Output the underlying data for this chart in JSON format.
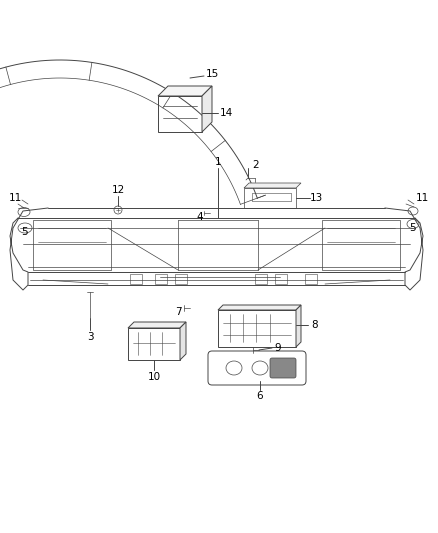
{
  "bg_color": "#ffffff",
  "line_color": "#444444",
  "label_color": "#000000",
  "fig_width": 4.38,
  "fig_height": 5.33,
  "dpi": 100
}
